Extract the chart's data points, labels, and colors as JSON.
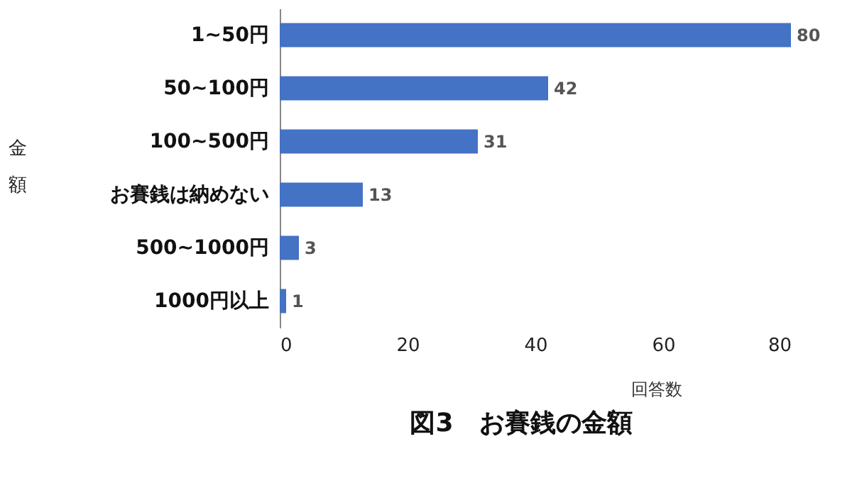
{
  "chart_data": {
    "type": "bar",
    "orientation": "horizontal",
    "title": "図3　お賽銭の金額",
    "xlabel": "回答数",
    "ylabel": "金額",
    "categories": [
      "1~50円",
      "50~100円",
      "100~500円",
      "お賽銭は納めない",
      "500~1000円",
      "1000円以上"
    ],
    "values": [
      80,
      42,
      31,
      13,
      3,
      1
    ],
    "color": "#4472c4",
    "xlim": [
      0,
      80
    ],
    "xticks": [
      0,
      20,
      40,
      60,
      80
    ],
    "grid": false,
    "data_labels": true
  }
}
